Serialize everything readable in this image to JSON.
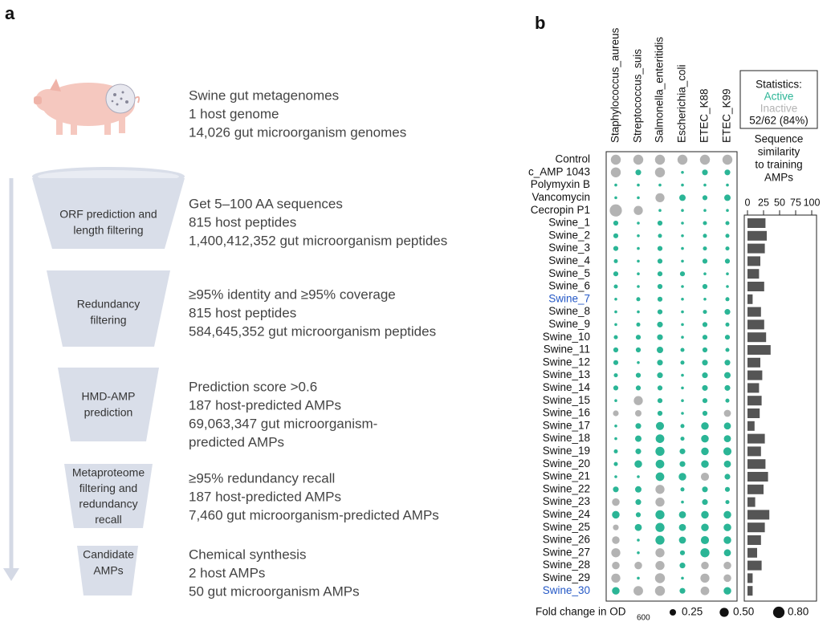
{
  "panel_labels": [
    "a",
    "b"
  ],
  "pipeline": [
    {
      "label": [],
      "lines": [
        "Swine gut metagenomes",
        "1 host genome",
        "14,026 gut microorganism genomes"
      ]
    },
    {
      "label": [
        "ORF prediction and",
        "length filtering"
      ],
      "lines": [
        "Get 5–100 AA sequences",
        "815 host peptides",
        "1,400,412,352 gut microorganism peptides"
      ]
    },
    {
      "label": [
        "Redundancy",
        "filtering"
      ],
      "lines": [
        "≥95% identity and ≥95% coverage",
        "815 host peptides",
        "584,645,352 gut microorganism peptides"
      ]
    },
    {
      "label": [
        "HMD-AMP",
        "prediction"
      ],
      "lines": [
        "Prediction score >0.6",
        "187 host-predicted AMPs",
        "69,063,347 gut microorganism-",
        "predicted AMPs"
      ]
    },
    {
      "label": [
        "Metaproteome",
        "filtering and",
        "redundancy",
        "recall"
      ],
      "lines": [
        "≥95% redundancy recall",
        "187 host-predicted AMPs",
        "7,460 gut microorganism-predicted AMPs"
      ]
    },
    {
      "label": [
        "Candidate",
        "AMPs"
      ],
      "lines": [
        "Chemical synthesis",
        "2 host AMPs",
        "50 gut microorganism AMPs"
      ]
    }
  ],
  "chart_data": [
    {
      "type": "dot",
      "columns": [
        "Staphylococcus_aureus",
        "Streptococcus_suis",
        "Salmonella_enteritidis",
        "Escherichia_coli",
        "ETEC_K88",
        "ETEC_K99"
      ],
      "active_color": "#2bb596",
      "inactive_color": "#b3b3b3",
      "highlight_color": "#2458c6",
      "rows": [
        {
          "name": "Control",
          "values": [
            0.6,
            0.6,
            0.6,
            0.6,
            0.6,
            0.6
          ],
          "active": [
            false,
            false,
            false,
            false,
            false,
            false
          ]
        },
        {
          "name": "c_AMP 1043",
          "values": [
            0.6,
            0.2,
            0.6,
            0.05,
            0.2,
            0.2
          ],
          "active": [
            false,
            true,
            false,
            true,
            true,
            true
          ]
        },
        {
          "name": "Polymyxin B",
          "values": [
            0.05,
            0.05,
            0.05,
            0.05,
            0.05,
            0.05
          ],
          "active": [
            true,
            true,
            true,
            true,
            true,
            true
          ]
        },
        {
          "name": "Vancomycin",
          "values": [
            0.05,
            0.05,
            0.5,
            0.25,
            0.15,
            0.25
          ],
          "active": [
            true,
            true,
            false,
            true,
            true,
            true
          ]
        },
        {
          "name": "Cecropin P1",
          "values": [
            0.9,
            0.5,
            0.05,
            0.05,
            0.05,
            0.05
          ],
          "active": [
            false,
            false,
            true,
            true,
            true,
            true
          ]
        },
        {
          "name": "Swine_1",
          "values": [
            0.15,
            0.05,
            0.15,
            0.05,
            0.1,
            0.1
          ],
          "active": [
            true,
            true,
            true,
            true,
            true,
            true
          ]
        },
        {
          "name": "Swine_2",
          "values": [
            0.15,
            0.05,
            0.1,
            0.05,
            0.1,
            0.1
          ],
          "active": [
            true,
            true,
            true,
            true,
            true,
            true
          ]
        },
        {
          "name": "Swine_3",
          "values": [
            0.15,
            0.05,
            0.15,
            0.05,
            0.1,
            0.1
          ],
          "active": [
            true,
            true,
            true,
            true,
            true,
            true
          ]
        },
        {
          "name": "Swine_4",
          "values": [
            0.1,
            0.05,
            0.15,
            0.05,
            0.15,
            0.15
          ],
          "active": [
            true,
            true,
            true,
            true,
            true,
            true
          ]
        },
        {
          "name": "Swine_5",
          "values": [
            0.15,
            0.05,
            0.15,
            0.15,
            0.05,
            0.05
          ],
          "active": [
            true,
            true,
            true,
            true,
            true,
            true
          ]
        },
        {
          "name": "Swine_6",
          "values": [
            0.1,
            0.05,
            0.15,
            0.05,
            0.15,
            0.05
          ],
          "active": [
            true,
            true,
            true,
            true,
            true,
            true
          ]
        },
        {
          "name": "Swine_7",
          "values": [
            0.05,
            0.1,
            0.15,
            0.05,
            0.05,
            0.1
          ],
          "active": [
            true,
            true,
            true,
            true,
            true,
            true
          ],
          "highlight": true
        },
        {
          "name": "Swine_8",
          "values": [
            0.05,
            0.05,
            0.15,
            0.05,
            0.1,
            0.2
          ],
          "active": [
            true,
            true,
            true,
            true,
            true,
            true
          ]
        },
        {
          "name": "Swine_9",
          "values": [
            0.05,
            0.1,
            0.2,
            0.05,
            0.15,
            0.1
          ],
          "active": [
            true,
            true,
            true,
            true,
            true,
            true
          ]
        },
        {
          "name": "Swine_10",
          "values": [
            0.1,
            0.15,
            0.2,
            0.05,
            0.15,
            0.15
          ],
          "active": [
            true,
            true,
            true,
            true,
            true,
            true
          ]
        },
        {
          "name": "Swine_11",
          "values": [
            0.15,
            0.15,
            0.25,
            0.1,
            0.15,
            0.1
          ],
          "active": [
            true,
            true,
            true,
            true,
            true,
            true
          ]
        },
        {
          "name": "Swine_12",
          "values": [
            0.15,
            0.05,
            0.2,
            0.1,
            0.2,
            0.2
          ],
          "active": [
            true,
            true,
            true,
            true,
            true,
            true
          ]
        },
        {
          "name": "Swine_13",
          "values": [
            0.1,
            0.15,
            0.2,
            0.05,
            0.2,
            0.25
          ],
          "active": [
            true,
            true,
            true,
            true,
            true,
            true
          ]
        },
        {
          "name": "Swine_14",
          "values": [
            0.15,
            0.15,
            0.15,
            0.05,
            0.2,
            0.2
          ],
          "active": [
            true,
            true,
            true,
            true,
            true,
            true
          ]
        },
        {
          "name": "Swine_15",
          "values": [
            0.05,
            0.5,
            0.15,
            0.05,
            0.15,
            0.1
          ],
          "active": [
            true,
            false,
            true,
            true,
            true,
            true
          ]
        },
        {
          "name": "Swine_16",
          "values": [
            0.2,
            0.25,
            0.15,
            0.05,
            0.15,
            0.3
          ],
          "active": [
            false,
            false,
            true,
            true,
            true,
            false
          ]
        },
        {
          "name": "Swine_17",
          "values": [
            0.05,
            0.2,
            0.4,
            0.1,
            0.35,
            0.3
          ],
          "active": [
            true,
            true,
            true,
            true,
            true,
            true
          ]
        },
        {
          "name": "Swine_18",
          "values": [
            0.05,
            0.25,
            0.45,
            0.1,
            0.35,
            0.3
          ],
          "active": [
            true,
            true,
            true,
            true,
            true,
            true
          ]
        },
        {
          "name": "Swine_19",
          "values": [
            0.1,
            0.2,
            0.5,
            0.2,
            0.35,
            0.4
          ],
          "active": [
            true,
            true,
            true,
            true,
            true,
            true
          ]
        },
        {
          "name": "Swine_20",
          "values": [
            0.1,
            0.35,
            0.45,
            0.2,
            0.35,
            0.3
          ],
          "active": [
            true,
            true,
            true,
            true,
            true,
            true
          ]
        },
        {
          "name": "Swine_21",
          "values": [
            0.05,
            0.05,
            0.45,
            0.35,
            0.4,
            0.2
          ],
          "active": [
            true,
            true,
            true,
            true,
            false,
            true
          ]
        },
        {
          "name": "Swine_22",
          "values": [
            0.2,
            0.25,
            0.5,
            0.1,
            0.2,
            0.15
          ],
          "active": [
            true,
            true,
            false,
            true,
            true,
            true
          ]
        },
        {
          "name": "Swine_23",
          "values": [
            0.35,
            0.2,
            0.5,
            0.05,
            0.2,
            0.1
          ],
          "active": [
            false,
            true,
            false,
            true,
            true,
            true
          ]
        },
        {
          "name": "Swine_24",
          "values": [
            0.35,
            0.15,
            0.5,
            0.3,
            0.35,
            0.35
          ],
          "active": [
            true,
            true,
            true,
            true,
            true,
            true
          ]
        },
        {
          "name": "Swine_25",
          "values": [
            0.2,
            0.3,
            0.5,
            0.3,
            0.35,
            0.35
          ],
          "active": [
            false,
            true,
            true,
            true,
            true,
            true
          ]
        },
        {
          "name": "Swine_26",
          "values": [
            0.35,
            0.05,
            0.5,
            0.3,
            0.4,
            0.35
          ],
          "active": [
            false,
            true,
            true,
            true,
            true,
            true
          ]
        },
        {
          "name": "Swine_27",
          "values": [
            0.5,
            0.05,
            0.5,
            0.15,
            0.5,
            0.3
          ],
          "active": [
            false,
            true,
            false,
            true,
            true,
            true
          ]
        },
        {
          "name": "Swine_28",
          "values": [
            0.35,
            0.35,
            0.5,
            0.2,
            0.35,
            0.35
          ],
          "active": [
            false,
            false,
            false,
            true,
            false,
            false
          ]
        },
        {
          "name": "Swine_29",
          "values": [
            0.5,
            0.05,
            0.6,
            0.05,
            0.5,
            0.35
          ],
          "active": [
            false,
            true,
            false,
            true,
            false,
            false
          ]
        },
        {
          "name": "Swine_30",
          "values": [
            0.35,
            0.55,
            0.6,
            0.2,
            0.45,
            0.35
          ],
          "active": [
            true,
            false,
            false,
            true,
            false,
            true
          ],
          "highlight": true
        }
      ],
      "statistics": {
        "title": "Statistics:",
        "active_label": "Active",
        "inactive_label": "Inactive",
        "summary": "52/62 (84%)"
      },
      "legend": {
        "title": "Fold change in OD",
        "title_sub": "600",
        "sizes": [
          0.25,
          {
            "value": 0.5,
            "label": "0.50"
          },
          {
            "value": 0.8,
            "label": "0.80"
          }
        ]
      }
    },
    {
      "type": "bar",
      "title": [
        "Sequence",
        "similarity",
        "to training",
        "AMPs"
      ],
      "values": [
        28,
        30,
        27,
        20,
        18,
        26,
        8,
        21,
        26,
        29,
        36,
        20,
        23,
        18,
        22,
        19,
        11,
        27,
        21,
        28,
        32,
        25,
        12,
        34,
        27,
        21,
        15,
        22,
        8,
        8
      ],
      "xlim": [
        0,
        100
      ],
      "xticks": [
        0,
        25,
        50,
        75,
        100
      ],
      "color": "#555555"
    }
  ]
}
